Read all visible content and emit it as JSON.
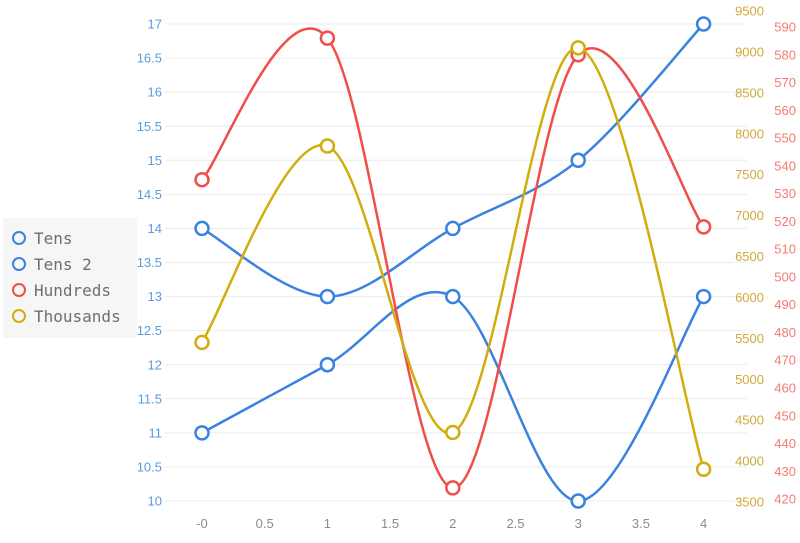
{
  "chart_data": {
    "type": "line",
    "title": "",
    "x": [
      0,
      1,
      2,
      3,
      4
    ],
    "series": [
      {
        "name": "Tens",
        "color": "#3a82e2",
        "axis": "left",
        "values": [
          11,
          12,
          13,
          10,
          13
        ]
      },
      {
        "name": "Tens 2",
        "color": "#3a82e2",
        "axis": "left",
        "values": [
          14,
          13,
          14,
          15,
          17
        ]
      },
      {
        "name": "Hundreds",
        "color": "#ef4e49",
        "axis": "hundreds",
        "values": [
          535,
          586,
          424,
          580,
          518
        ]
      },
      {
        "name": "Thousands",
        "color": "#d1ad0e",
        "axis": "thousands",
        "values": [
          5450,
          7850,
          4350,
          9050,
          3900
        ]
      }
    ],
    "axes": {
      "x": {
        "tick_labels": [
          "-0",
          "0.5",
          "1",
          "1.5",
          "2",
          "2.5",
          "3",
          "3.5",
          "4"
        ],
        "label_color": "#8c8c8c"
      },
      "left": {
        "min": 10,
        "max": 17,
        "tick_step": 0.5,
        "label_color": "#5a9be2",
        "tick_labels": [
          "17",
          "16.5",
          "16",
          "15.5",
          "15",
          "14.5",
          "14",
          "13.5",
          "13",
          "12.5",
          "12",
          "11.5",
          "11",
          "10.5",
          "10"
        ]
      },
      "thousands": {
        "min": 3500,
        "max": 9500,
        "tick_step": 500,
        "label_color": "#cfa93c",
        "tick_labels": [
          "9500",
          "9000",
          "8500",
          "8000",
          "7500",
          "7000",
          "6500",
          "6000",
          "5500",
          "5000",
          "4500",
          "4000",
          "3500"
        ]
      },
      "hundreds": {
        "min": 420,
        "max": 590,
        "tick_step": 10,
        "label_color": "#f27b74",
        "tick_labels": [
          "590",
          "580",
          "570",
          "560",
          "550",
          "540",
          "530",
          "520",
          "510",
          "500",
          "490",
          "480",
          "470",
          "460",
          "450",
          "440",
          "430",
          "420"
        ]
      }
    },
    "grid": {
      "horizontal": true,
      "vertical": false,
      "color": "#ececec"
    },
    "legend": {
      "position": "left",
      "items": [
        "Tens",
        "Tens 2",
        "Hundreds",
        "Thousands"
      ],
      "background": "#f6f6f6",
      "text_color": "#6e6e6e"
    }
  }
}
